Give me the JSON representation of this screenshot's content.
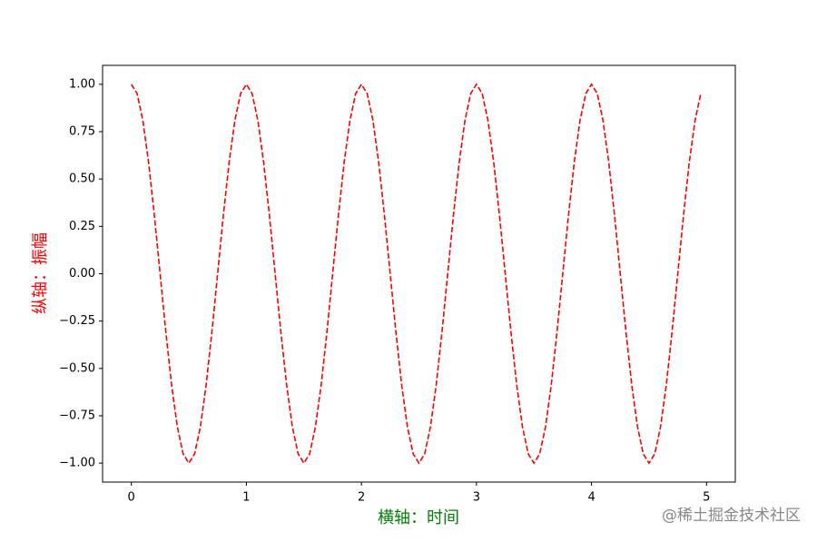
{
  "chart_data": {
    "type": "line",
    "xlabel": "横轴：时间",
    "ylabel": "纵轴：振幅",
    "x": [
      0,
      0.05,
      0.1,
      0.15,
      0.2,
      0.25,
      0.3,
      0.35,
      0.4,
      0.45,
      0.5,
      0.55,
      0.6,
      0.65,
      0.7,
      0.75,
      0.8,
      0.85,
      0.9,
      0.95,
      1,
      1.05,
      1.1,
      1.15,
      1.2,
      1.25,
      1.3,
      1.35,
      1.4,
      1.45,
      1.5,
      1.55,
      1.6,
      1.65,
      1.7,
      1.75,
      1.8,
      1.85,
      1.9,
      1.95,
      2,
      2.05,
      2.1,
      2.15,
      2.2,
      2.25,
      2.3,
      2.35,
      2.4,
      2.45,
      2.5,
      2.55,
      2.6,
      2.65,
      2.7,
      2.75,
      2.8,
      2.85,
      2.9,
      2.95,
      3,
      3.05,
      3.1,
      3.15,
      3.2,
      3.25,
      3.3,
      3.35,
      3.4,
      3.45,
      3.5,
      3.55,
      3.6,
      3.65,
      3.7,
      3.75,
      3.8,
      3.85,
      3.9,
      3.95,
      4,
      4.05,
      4.1,
      4.15,
      4.2,
      4.25,
      4.3,
      4.35,
      4.4,
      4.45,
      4.5,
      4.55,
      4.6,
      4.65,
      4.7,
      4.75,
      4.8,
      4.85,
      4.9,
      4.95
    ],
    "series": [
      {
        "color": "#ff0000",
        "values": [
          1,
          0.951,
          0.809,
          0.588,
          0.309,
          0,
          -0.309,
          -0.588,
          -0.809,
          -0.951,
          -1,
          -0.951,
          -0.809,
          -0.588,
          -0.309,
          0,
          0.309,
          0.588,
          0.809,
          0.951,
          1,
          0.951,
          0.809,
          0.588,
          0.309,
          0,
          -0.309,
          -0.588,
          -0.809,
          -0.951,
          -1,
          -0.951,
          -0.809,
          -0.588,
          -0.309,
          0,
          0.309,
          0.588,
          0.809,
          0.951,
          1,
          0.951,
          0.809,
          0.588,
          0.309,
          0,
          -0.309,
          -0.588,
          -0.809,
          -0.951,
          -1,
          -0.951,
          -0.809,
          -0.588,
          -0.309,
          0,
          0.309,
          0.588,
          0.809,
          0.951,
          1,
          0.951,
          0.809,
          0.588,
          0.309,
          0,
          -0.309,
          -0.588,
          -0.809,
          -0.951,
          -1,
          -0.951,
          -0.809,
          -0.588,
          -0.309,
          0,
          0.309,
          0.588,
          0.809,
          0.951,
          1,
          0.951,
          0.809,
          0.588,
          0.309,
          0,
          -0.309,
          -0.588,
          -0.809,
          -0.951,
          -1,
          -0.951,
          -0.809,
          -0.588,
          -0.309,
          0,
          0.309,
          0.588,
          0.809,
          0.951
        ]
      }
    ],
    "linestyle": "dashed",
    "xlim": [
      -0.25,
      5.25
    ],
    "ylim": [
      -1.1,
      1.1
    ],
    "xticks": [
      0,
      1,
      2,
      3,
      4,
      5
    ],
    "yticks": [
      {
        "value": -1,
        "label": "−1.00"
      },
      {
        "value": -0.75,
        "label": "−0.75"
      },
      {
        "value": -0.5,
        "label": "−0.50"
      },
      {
        "value": -0.25,
        "label": "−0.25"
      },
      {
        "value": 0,
        "label": "0.00"
      },
      {
        "value": 0.25,
        "label": "0.25"
      },
      {
        "value": 0.5,
        "label": "0.50"
      },
      {
        "value": 0.75,
        "label": "0.75"
      },
      {
        "value": 1,
        "label": "1.00"
      }
    ],
    "xlabel_color": "#008000",
    "ylabel_color": "#ff0000",
    "watermark": "@稀土掘金技术社区"
  }
}
